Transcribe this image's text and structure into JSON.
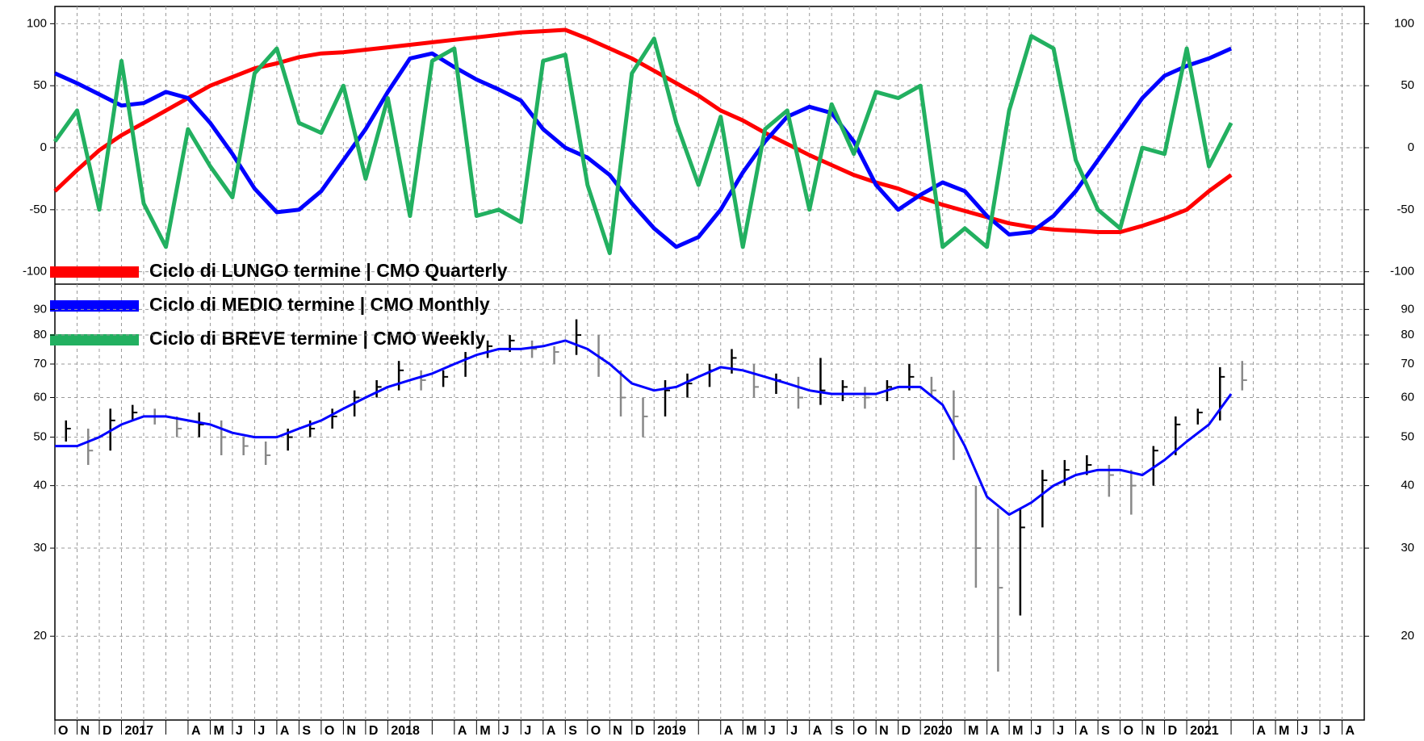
{
  "chart_data": [
    {
      "type": "line",
      "ylim": [
        -110,
        110
      ],
      "yticks": [
        -100,
        -50,
        0,
        50,
        100
      ],
      "grid": true,
      "legend": "upper left",
      "series": [
        {
          "name": "Ciclo di LUNGO termine | CMO Quarterly",
          "color": "#ff0000",
          "values": [
            -35,
            -18,
            -2,
            10,
            20,
            30,
            40,
            50,
            57,
            64,
            68,
            73,
            76,
            77,
            79,
            81,
            83,
            85,
            87,
            89,
            91,
            93,
            94,
            95,
            88,
            80,
            72,
            62,
            52,
            42,
            30,
            22,
            12,
            3,
            -6,
            -14,
            -22,
            -28,
            -33,
            -40,
            -46,
            -51,
            -56,
            -61,
            -64,
            -66,
            -67,
            -68,
            -68,
            -63,
            -57,
            -50,
            -35,
            -22,
            null,
            null,
            null,
            null,
            null
          ]
        },
        {
          "name": "Ciclo di MEDIO termine | CMO Monthly",
          "color": "#0000ff",
          "values": [
            60,
            52,
            43,
            34,
            36,
            45,
            40,
            20,
            -5,
            -33,
            -52,
            -50,
            -35,
            -10,
            15,
            45,
            72,
            76,
            65,
            55,
            47,
            38,
            15,
            0,
            -8,
            -22,
            -45,
            -65,
            -80,
            -72,
            -50,
            -20,
            5,
            25,
            33,
            28,
            5,
            -30,
            -50,
            -38,
            -28,
            -35,
            -55,
            -70,
            -68,
            -55,
            -35,
            -10,
            15,
            40,
            58,
            66,
            72,
            80,
            null,
            null,
            null,
            null,
            null
          ]
        },
        {
          "name": "Ciclo di BREVE termine | CMO Weekly",
          "color": "#22b060",
          "values": [
            5,
            30,
            -50,
            70,
            -45,
            -80,
            15,
            -15,
            -40,
            60,
            80,
            20,
            12,
            50,
            -25,
            40,
            -55,
            70,
            80,
            -55,
            -50,
            -60,
            70,
            75,
            -30,
            -85,
            60,
            88,
            20,
            -30,
            25,
            -80,
            15,
            30,
            -50,
            35,
            -5,
            45,
            40,
            50,
            -80,
            -65,
            -80,
            30,
            90,
            80,
            -10,
            -50,
            -65,
            0,
            -5,
            80,
            -15,
            20,
            null,
            null,
            null,
            null,
            null
          ]
        }
      ]
    },
    {
      "type": "ohlc",
      "log": true,
      "ylim": [
        13.6,
        100
      ],
      "yticks": [
        20,
        30,
        40,
        50,
        60,
        70,
        80,
        90
      ],
      "grid": true,
      "categories": [
        "O",
        "N",
        "D",
        "2017",
        null,
        null,
        "A",
        "M",
        "J",
        "J",
        "A",
        "S",
        "O",
        "N",
        "D",
        "2018",
        null,
        null,
        "A",
        "M",
        "J",
        "J",
        "A",
        "S",
        "O",
        "N",
        "D",
        "2019",
        null,
        null,
        "A",
        "M",
        "J",
        "J",
        "A",
        "S",
        "O",
        "N",
        "D",
        "2020",
        null,
        "M",
        "A",
        "M",
        "J",
        "J",
        "A",
        "S",
        "O",
        "N",
        "D",
        "2021",
        null,
        null,
        "A",
        "M",
        "J",
        "J",
        "A"
      ],
      "high": [
        54,
        52,
        57,
        58,
        57,
        55,
        56,
        54,
        50,
        49,
        52,
        54,
        57,
        62,
        65,
        71,
        68,
        68,
        74,
        78,
        80,
        78,
        76,
        86,
        80,
        68,
        60,
        65,
        67,
        70,
        75,
        70,
        67,
        66,
        72,
        65,
        63,
        65,
        70,
        66,
        62,
        40,
        36,
        36,
        43,
        45,
        46,
        44,
        43,
        48,
        55,
        57,
        69,
        71,
        null,
        null,
        null,
        null,
        null
      ],
      "low": [
        49,
        44,
        47,
        54,
        53,
        50,
        50,
        46,
        46,
        44,
        47,
        50,
        52,
        55,
        60,
        62,
        62,
        63,
        66,
        72,
        74,
        72,
        70,
        73,
        66,
        55,
        50,
        55,
        60,
        63,
        67,
        60,
        61,
        57,
        58,
        59,
        57,
        59,
        62,
        60,
        45,
        25,
        17,
        22,
        33,
        40,
        42,
        38,
        35,
        40,
        46,
        53,
        54,
        62,
        null,
        null,
        null,
        null,
        null
      ],
      "close": [
        52,
        47,
        54,
        56,
        55,
        52,
        53,
        50,
        48,
        46,
        50,
        52,
        55,
        60,
        63,
        68,
        65,
        66,
        72,
        76,
        78,
        75,
        74,
        80,
        72,
        60,
        55,
        62,
        64,
        68,
        72,
        63,
        65,
        60,
        62,
        63,
        60,
        63,
        66,
        62,
        55,
        30,
        25,
        33,
        41,
        43,
        44,
        42,
        40,
        47,
        53,
        56,
        66,
        65,
        null,
        null,
        null,
        null,
        null
      ],
      "series": [
        {
          "color": "#0000ff",
          "values": [
            48,
            48,
            50,
            53,
            55,
            55,
            54,
            53,
            51,
            50,
            50,
            52,
            54,
            57,
            60,
            63,
            65,
            67,
            70,
            73,
            75,
            75,
            76,
            78,
            75,
            70,
            64,
            62,
            63,
            66,
            69,
            68,
            66,
            64,
            62,
            61,
            61,
            61,
            63,
            63,
            58,
            48,
            38,
            35,
            37,
            40,
            42,
            43,
            43,
            42,
            45,
            49,
            53,
            61,
            null,
            null,
            null,
            null,
            null
          ]
        }
      ]
    }
  ]
}
